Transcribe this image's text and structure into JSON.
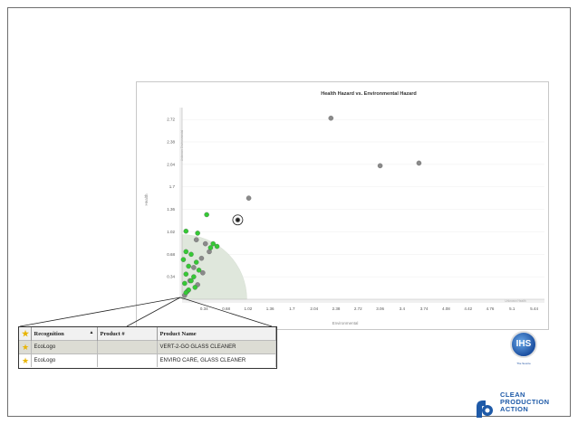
{
  "chart": {
    "title": "Health Hazard vs. Environmental Hazard",
    "y_axis_title": "Health",
    "x_axis_title": "Environmental",
    "y_band_label": "Unknown Environmental",
    "x_band_label": "Unknown Health",
    "y_ticks": [
      "0.34",
      "0.68",
      "1.02",
      "1.36",
      "1.7",
      "2.04",
      "2.38",
      "2.72"
    ],
    "x_ticks": [
      "0.34",
      "0.68",
      "1.02",
      "1.36",
      "1.7",
      "2.04",
      "2.38",
      "2.72",
      "3.06",
      "3.4",
      "3.74",
      "4.08",
      "4.42",
      "4.76",
      "5.1",
      "5.44"
    ]
  },
  "chart_data": {
    "type": "scatter",
    "title": "Health Hazard vs. Environmental Hazard",
    "xlabel": "Environmental",
    "ylabel": "Health",
    "xlim": [
      0,
      5.6
    ],
    "ylim": [
      0,
      2.9
    ],
    "grid": true,
    "series": [
      {
        "color": "#8a8a8a",
        "points": [
          [
            2.3,
            2.74
          ],
          [
            3.06,
            2.02
          ],
          [
            3.66,
            2.06
          ],
          [
            1.03,
            1.53
          ],
          [
            0.86,
            1.2
          ],
          [
            0.22,
            0.9
          ],
          [
            0.36,
            0.84
          ],
          [
            0.42,
            0.72
          ],
          [
            0.3,
            0.62
          ],
          [
            0.18,
            0.48
          ],
          [
            0.32,
            0.4
          ],
          [
            0.12,
            0.28
          ],
          [
            0.24,
            0.22
          ],
          [
            0.08,
            0.12
          ],
          [
            0.04,
            0.06
          ]
        ]
      },
      {
        "color": "#35c935",
        "points": [
          [
            0.38,
            1.28
          ],
          [
            0.06,
            1.03
          ],
          [
            0.24,
            1.0
          ],
          [
            0.48,
            0.84
          ],
          [
            0.54,
            0.8
          ],
          [
            0.44,
            0.78
          ],
          [
            0.06,
            0.72
          ],
          [
            0.14,
            0.68
          ],
          [
            0.02,
            0.6
          ],
          [
            0.22,
            0.56
          ],
          [
            0.1,
            0.5
          ],
          [
            0.26,
            0.44
          ],
          [
            0.06,
            0.38
          ],
          [
            0.18,
            0.34
          ],
          [
            0.14,
            0.28
          ],
          [
            0.04,
            0.24
          ],
          [
            0.2,
            0.18
          ],
          [
            0.1,
            0.14
          ],
          [
            0.06,
            0.1
          ]
        ]
      }
    ],
    "highlight": {
      "x": 0.86,
      "y": 1.2
    }
  },
  "table": {
    "columns": [
      "Recognition",
      "Product #",
      "Product Name"
    ],
    "sort_indicator": "▲",
    "rows": [
      {
        "recognition": "EcoLogo",
        "product_no": "",
        "product_name": "VERT-2-GO GLASS CLEANER",
        "selected": true
      },
      {
        "recognition": "EcoLogo",
        "product_no": "",
        "product_name": "ENVIRO CARE, GLASS CLEANER",
        "selected": false
      }
    ]
  },
  "logos": {
    "ihs_mark": "IHS",
    "ihs_caption": "The Source",
    "cpa_line1": "CLEAN",
    "cpa_line2": "PRODUCTION",
    "cpa_line3": "ACTION"
  },
  "colors": {
    "safe_zone": "#dfe7dc",
    "green_point": "#35c935",
    "gray_point": "#8a8a8a",
    "brand_blue": "#1e5aa8"
  }
}
